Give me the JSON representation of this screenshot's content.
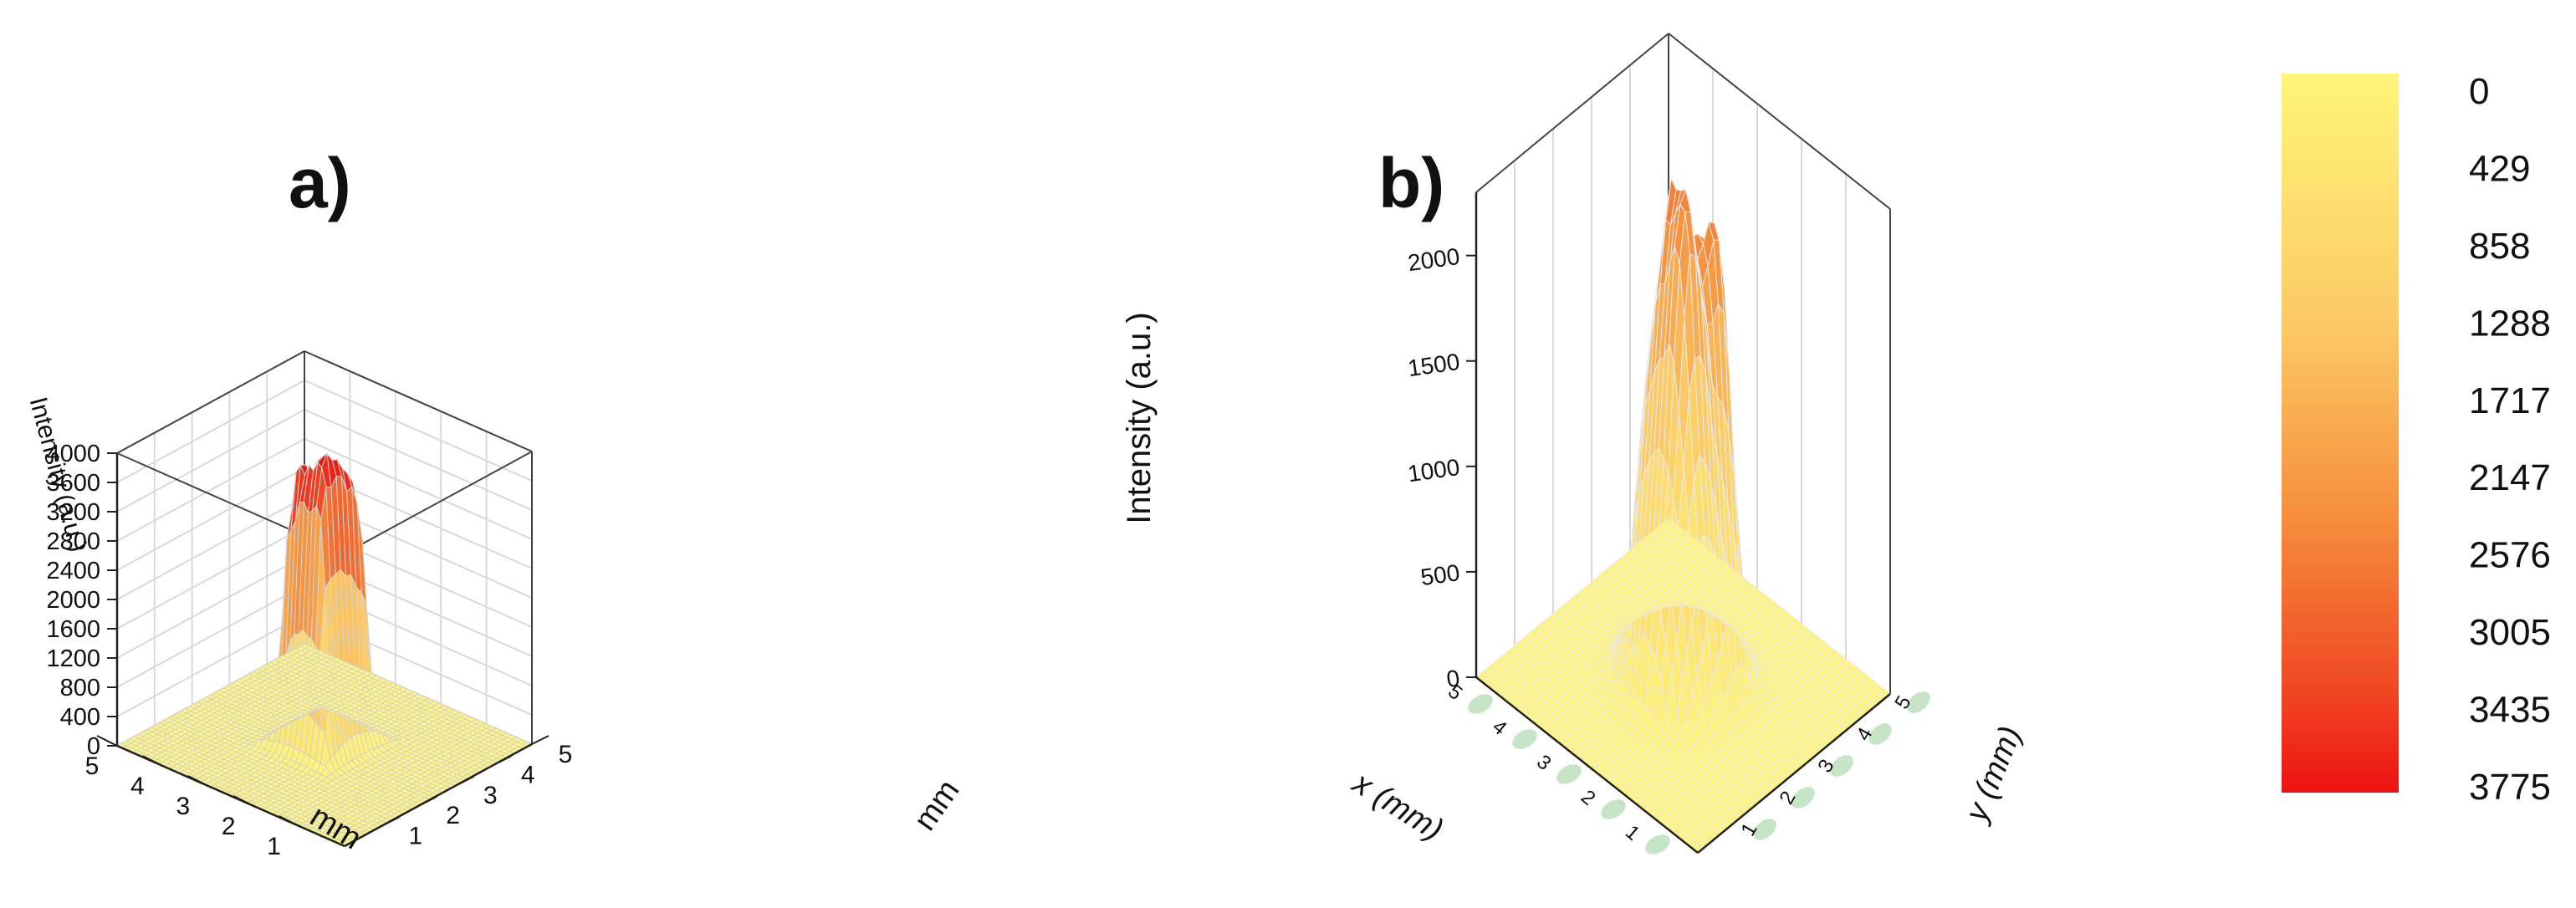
{
  "chart_data": [
    {
      "panel": "a)",
      "type": "surface3d",
      "zlabel": "Intensity (a.u.)",
      "xlabel": "mm",
      "ylabel": "mm",
      "x_ticks": [
        1,
        2,
        3,
        4,
        5
      ],
      "y_ticks": [
        1,
        2,
        3,
        4,
        5
      ],
      "z_ticks": [
        0,
        400,
        800,
        1200,
        1600,
        2000,
        2400,
        2800,
        3200,
        3600,
        4000
      ],
      "xlim": [
        0,
        5
      ],
      "ylim": [
        0,
        5
      ],
      "zlim": [
        0,
        4000
      ],
      "peak_center": [
        2.5,
        2.5
      ],
      "peak_max": 3850,
      "profile": "flat-top"
    },
    {
      "panel": "b)",
      "type": "surface3d",
      "zlabel": "Intensity (a.u.)",
      "xlabel": "x (mm)",
      "ylabel": "y (mm)",
      "x_ticks": [
        1,
        2,
        3,
        4,
        5
      ],
      "y_ticks": [
        1,
        2,
        3,
        4,
        5
      ],
      "z_ticks": [
        0,
        500,
        1000,
        1500,
        2000
      ],
      "xlim": [
        0,
        5
      ],
      "ylim": [
        0,
        5
      ],
      "zlim": [
        0,
        2300
      ],
      "peak_center": [
        2.5,
        2.5
      ],
      "peak_max": 2250,
      "profile": "multi-peak"
    }
  ],
  "colorbar": {
    "labels": [
      "0",
      "429",
      "858",
      "1288",
      "1717",
      "2147",
      "2576",
      "3005",
      "3435",
      "3775"
    ],
    "color_low": "#fff57a",
    "color_high": "#ee1111"
  }
}
